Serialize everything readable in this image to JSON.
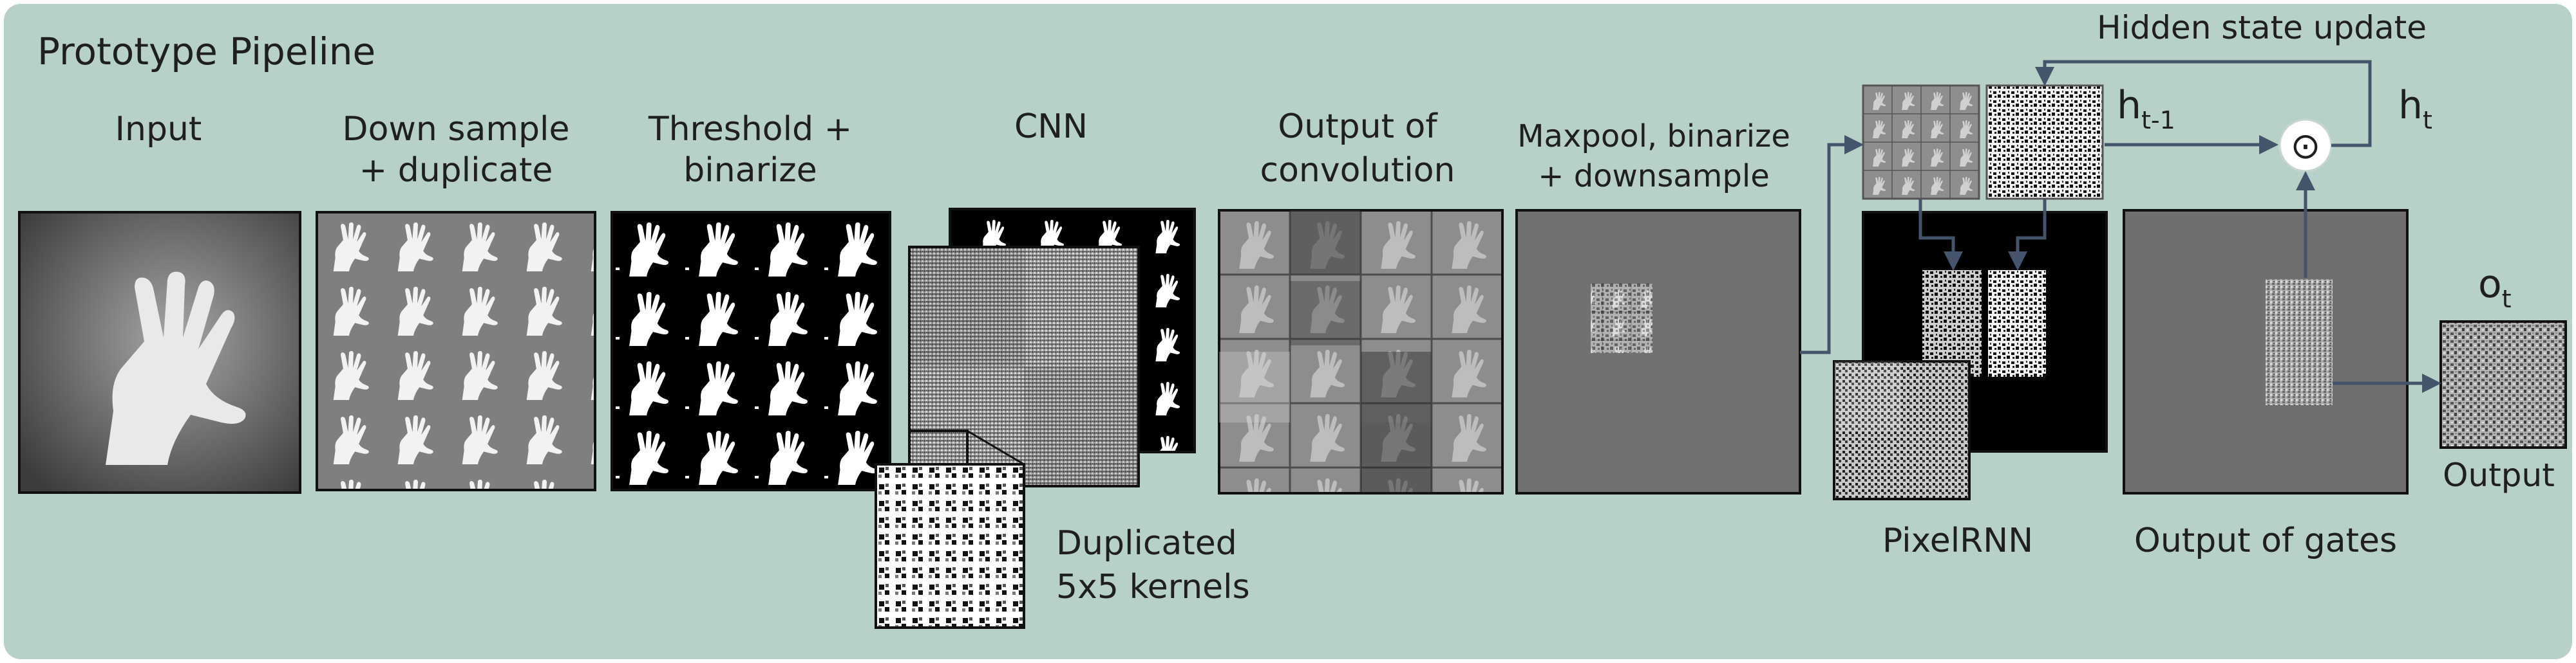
{
  "title": "Prototype Pipeline",
  "stages": {
    "input": "Input",
    "downsample_line1": "Down sample",
    "downsample_line2": "+ duplicate",
    "threshold_line1": "Threshold +",
    "threshold_line2": "binarize",
    "cnn": "CNN",
    "conv_out_line1": "Output of",
    "conv_out_line2": "convolution",
    "maxpool_line1": "Maxpool, binarize",
    "maxpool_line2": "+ downsample",
    "kernels_line1": "Duplicated",
    "kernels_line2": "5x5 kernels",
    "pixelrnn": "PixelRNN",
    "gates_out": "Output of gates",
    "output": "Output"
  },
  "rnn": {
    "hidden_update": "Hidden state update",
    "h_prev_main": "h",
    "h_prev_sub": "t-1",
    "h_t_main": "h",
    "h_t_sub": "t",
    "o_t_main": "o",
    "o_t_sub": "t",
    "operator": "⊙"
  },
  "colors": {
    "background": "#b7d0c8",
    "arrow": "#44546a",
    "frame": "#1a1a1a"
  }
}
